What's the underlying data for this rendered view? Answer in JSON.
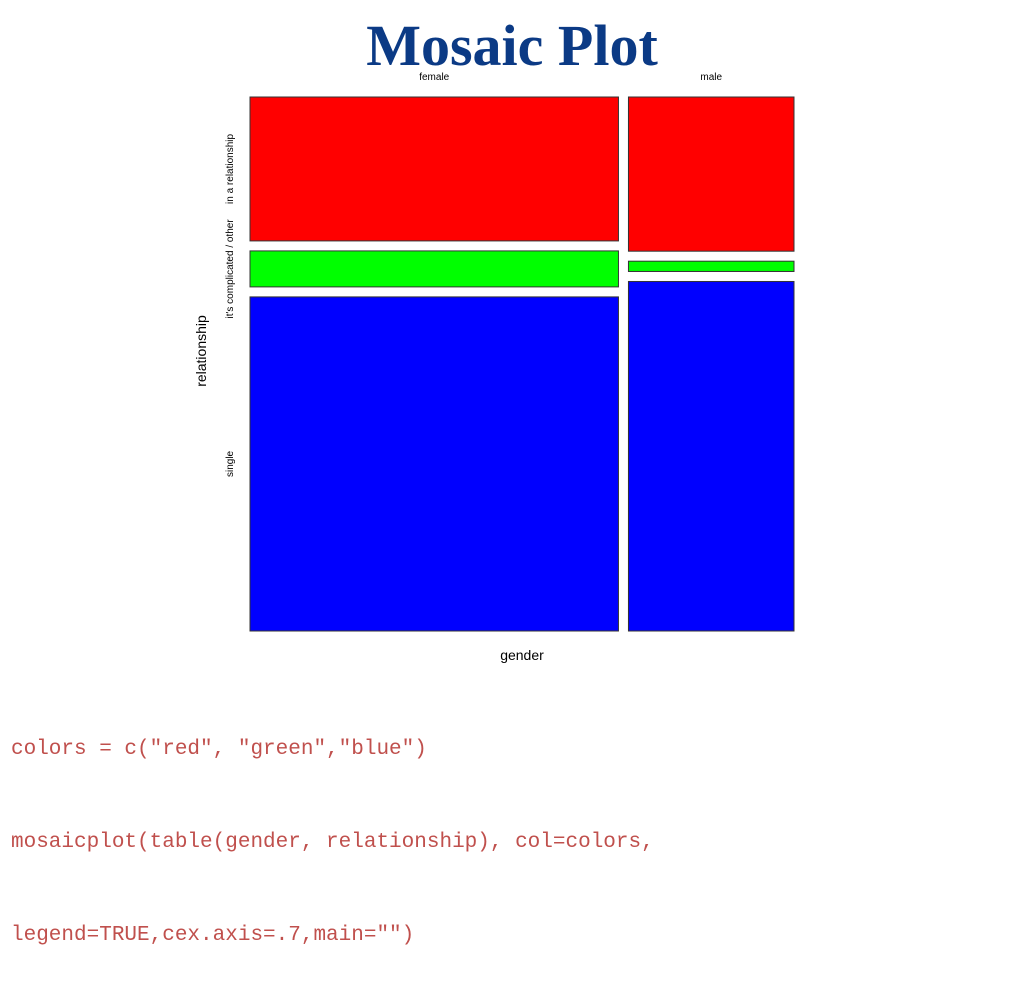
{
  "slide": {
    "title": "Mosaic Plot"
  },
  "chart_data": {
    "type": "mosaic",
    "title": "",
    "xlabel": "gender",
    "ylabel": "relationship",
    "columns": [
      "female",
      "male"
    ],
    "column_proportions": [
      0.69,
      0.31
    ],
    "rows": [
      "in a relationship",
      "it's complicated / other",
      "single"
    ],
    "fill_colors": [
      "#ff0000",
      "#00ff00",
      "#0000ff"
    ],
    "proportions": {
      "female": [
        0.28,
        0.07,
        0.65
      ],
      "male": [
        0.3,
        0.02,
        0.68
      ]
    }
  },
  "code": {
    "lines": [
      "colors = c(\"red\", \"green\",\"blue\")",
      "mosaicplot(table(gender, relationship), col=colors,",
      "legend=TRUE,cex.axis=.7,main=\"\")"
    ]
  }
}
